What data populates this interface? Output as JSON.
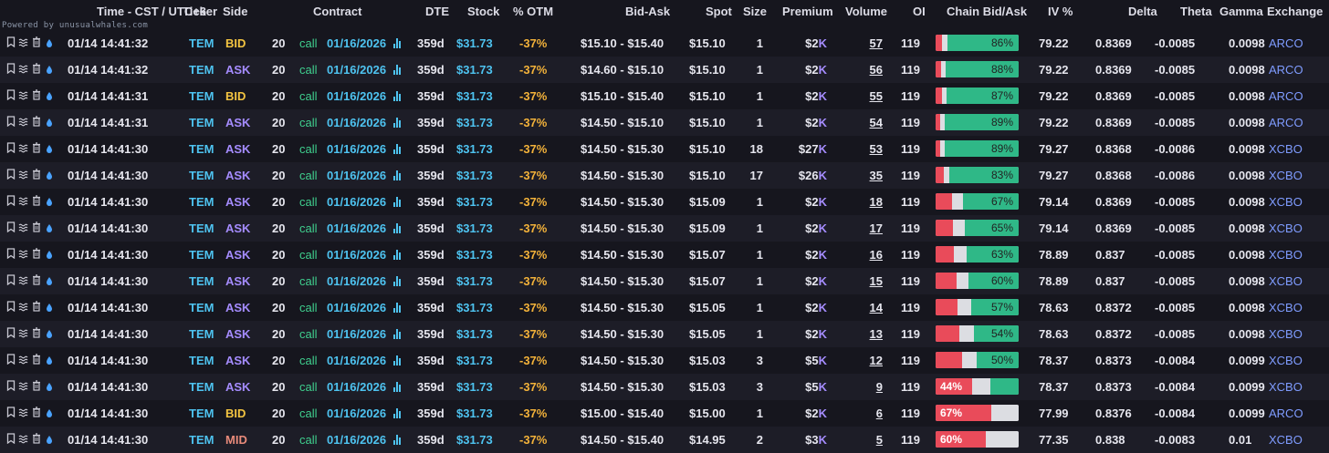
{
  "header": {
    "time": "Time - CST / UTC+6",
    "ticker": "Ticker",
    "side": "Side",
    "contract": "Contract",
    "dte": "DTE",
    "stock": "Stock",
    "otm": "% OTM",
    "bidask": "Bid-Ask",
    "spot": "Spot",
    "size": "Size",
    "premium": "Premium",
    "volume": "Volume",
    "oi": "OI",
    "chain": "Chain Bid/Ask",
    "iv": "IV %",
    "delta": "Delta",
    "theta": "Theta",
    "gamma": "Gamma",
    "exchange": "Exchange"
  },
  "powered_by": "Powered by unusualwhales.com",
  "icon_names": [
    "bookmark-icon",
    "waves-icon",
    "trash-icon",
    "drop-icon"
  ],
  "colors": {
    "ask": "#a58cff",
    "bid": "#f3c441",
    "mid": "#e88a7a",
    "bar_red": "#e94b5a",
    "bar_green": "#2fb887"
  },
  "rows": [
    {
      "time": "01/14 14:41:32",
      "ticker": "TEM",
      "side": "BID",
      "strike": "20",
      "type": "call",
      "exp": "01/16/2026",
      "dte": "359d",
      "stock": "$31.73",
      "otm": "-37%",
      "bidask": "$15.10 - $15.40",
      "spot": "$15.10",
      "size": "1",
      "premium": "$2",
      "prem_unit": "K",
      "volume": "57",
      "oi": "119",
      "chain_label": "86%",
      "chain_red": 0.08,
      "chain_grey": 0.06,
      "chain_green": 0.86,
      "iv": "79.22",
      "delta": "0.8369",
      "theta": "-0.0085",
      "gamma": "0.0098",
      "exchange": "ARCO"
    },
    {
      "time": "01/14 14:41:32",
      "ticker": "TEM",
      "side": "ASK",
      "strike": "20",
      "type": "call",
      "exp": "01/16/2026",
      "dte": "359d",
      "stock": "$31.73",
      "otm": "-37%",
      "bidask": "$14.60 - $15.10",
      "spot": "$15.10",
      "size": "1",
      "premium": "$2",
      "prem_unit": "K",
      "volume": "56",
      "oi": "119",
      "chain_label": "88%",
      "chain_red": 0.07,
      "chain_grey": 0.05,
      "chain_green": 0.88,
      "iv": "79.22",
      "delta": "0.8369",
      "theta": "-0.0085",
      "gamma": "0.0098",
      "exchange": "ARCO"
    },
    {
      "time": "01/14 14:41:31",
      "ticker": "TEM",
      "side": "BID",
      "strike": "20",
      "type": "call",
      "exp": "01/16/2026",
      "dte": "359d",
      "stock": "$31.73",
      "otm": "-37%",
      "bidask": "$15.10 - $15.40",
      "spot": "$15.10",
      "size": "1",
      "premium": "$2",
      "prem_unit": "K",
      "volume": "55",
      "oi": "119",
      "chain_label": "87%",
      "chain_red": 0.08,
      "chain_grey": 0.05,
      "chain_green": 0.87,
      "iv": "79.22",
      "delta": "0.8369",
      "theta": "-0.0085",
      "gamma": "0.0098",
      "exchange": "ARCO"
    },
    {
      "time": "01/14 14:41:31",
      "ticker": "TEM",
      "side": "ASK",
      "strike": "20",
      "type": "call",
      "exp": "01/16/2026",
      "dte": "359d",
      "stock": "$31.73",
      "otm": "-37%",
      "bidask": "$14.50 - $15.10",
      "spot": "$15.10",
      "size": "1",
      "premium": "$2",
      "prem_unit": "K",
      "volume": "54",
      "oi": "119",
      "chain_label": "89%",
      "chain_red": 0.06,
      "chain_grey": 0.05,
      "chain_green": 0.89,
      "iv": "79.22",
      "delta": "0.8369",
      "theta": "-0.0085",
      "gamma": "0.0098",
      "exchange": "ARCO"
    },
    {
      "time": "01/14 14:41:30",
      "ticker": "TEM",
      "side": "ASK",
      "strike": "20",
      "type": "call",
      "exp": "01/16/2026",
      "dte": "359d",
      "stock": "$31.73",
      "otm": "-37%",
      "bidask": "$14.50 - $15.30",
      "spot": "$15.10",
      "size": "18",
      "premium": "$27",
      "prem_unit": "K",
      "volume": "53",
      "oi": "119",
      "chain_label": "89%",
      "chain_red": 0.06,
      "chain_grey": 0.05,
      "chain_green": 0.89,
      "iv": "79.27",
      "delta": "0.8368",
      "theta": "-0.0086",
      "gamma": "0.0098",
      "exchange": "XCBO"
    },
    {
      "time": "01/14 14:41:30",
      "ticker": "TEM",
      "side": "ASK",
      "strike": "20",
      "type": "call",
      "exp": "01/16/2026",
      "dte": "359d",
      "stock": "$31.73",
      "otm": "-37%",
      "bidask": "$14.50 - $15.30",
      "spot": "$15.10",
      "size": "17",
      "premium": "$26",
      "prem_unit": "K",
      "volume": "35",
      "oi": "119",
      "chain_label": "83%",
      "chain_red": 0.1,
      "chain_grey": 0.07,
      "chain_green": 0.83,
      "iv": "79.27",
      "delta": "0.8368",
      "theta": "-0.0086",
      "gamma": "0.0098",
      "exchange": "XCBO"
    },
    {
      "time": "01/14 14:41:30",
      "ticker": "TEM",
      "side": "ASK",
      "strike": "20",
      "type": "call",
      "exp": "01/16/2026",
      "dte": "359d",
      "stock": "$31.73",
      "otm": "-37%",
      "bidask": "$14.50 - $15.30",
      "spot": "$15.09",
      "size": "1",
      "premium": "$2",
      "prem_unit": "K",
      "volume": "18",
      "oi": "119",
      "chain_label": "67%",
      "chain_red": 0.2,
      "chain_grey": 0.13,
      "chain_green": 0.67,
      "iv": "79.14",
      "delta": "0.8369",
      "theta": "-0.0085",
      "gamma": "0.0098",
      "exchange": "XCBO"
    },
    {
      "time": "01/14 14:41:30",
      "ticker": "TEM",
      "side": "ASK",
      "strike": "20",
      "type": "call",
      "exp": "01/16/2026",
      "dte": "359d",
      "stock": "$31.73",
      "otm": "-37%",
      "bidask": "$14.50 - $15.30",
      "spot": "$15.09",
      "size": "1",
      "premium": "$2",
      "prem_unit": "K",
      "volume": "17",
      "oi": "119",
      "chain_label": "65%",
      "chain_red": 0.21,
      "chain_grey": 0.14,
      "chain_green": 0.65,
      "iv": "79.14",
      "delta": "0.8369",
      "theta": "-0.0085",
      "gamma": "0.0098",
      "exchange": "XCBO"
    },
    {
      "time": "01/14 14:41:30",
      "ticker": "TEM",
      "side": "ASK",
      "strike": "20",
      "type": "call",
      "exp": "01/16/2026",
      "dte": "359d",
      "stock": "$31.73",
      "otm": "-37%",
      "bidask": "$14.50 - $15.30",
      "spot": "$15.07",
      "size": "1",
      "premium": "$2",
      "prem_unit": "K",
      "volume": "16",
      "oi": "119",
      "chain_label": "63%",
      "chain_red": 0.22,
      "chain_grey": 0.15,
      "chain_green": 0.63,
      "iv": "78.89",
      "delta": "0.837",
      "theta": "-0.0085",
      "gamma": "0.0098",
      "exchange": "XCBO"
    },
    {
      "time": "01/14 14:41:30",
      "ticker": "TEM",
      "side": "ASK",
      "strike": "20",
      "type": "call",
      "exp": "01/16/2026",
      "dte": "359d",
      "stock": "$31.73",
      "otm": "-37%",
      "bidask": "$14.50 - $15.30",
      "spot": "$15.07",
      "size": "1",
      "premium": "$2",
      "prem_unit": "K",
      "volume": "15",
      "oi": "119",
      "chain_label": "60%",
      "chain_red": 0.25,
      "chain_grey": 0.15,
      "chain_green": 0.6,
      "iv": "78.89",
      "delta": "0.837",
      "theta": "-0.0085",
      "gamma": "0.0098",
      "exchange": "XCBO"
    },
    {
      "time": "01/14 14:41:30",
      "ticker": "TEM",
      "side": "ASK",
      "strike": "20",
      "type": "call",
      "exp": "01/16/2026",
      "dte": "359d",
      "stock": "$31.73",
      "otm": "-37%",
      "bidask": "$14.50 - $15.30",
      "spot": "$15.05",
      "size": "1",
      "premium": "$2",
      "prem_unit": "K",
      "volume": "14",
      "oi": "119",
      "chain_label": "57%",
      "chain_red": 0.26,
      "chain_grey": 0.17,
      "chain_green": 0.57,
      "iv": "78.63",
      "delta": "0.8372",
      "theta": "-0.0085",
      "gamma": "0.0098",
      "exchange": "XCBO"
    },
    {
      "time": "01/14 14:41:30",
      "ticker": "TEM",
      "side": "ASK",
      "strike": "20",
      "type": "call",
      "exp": "01/16/2026",
      "dte": "359d",
      "stock": "$31.73",
      "otm": "-37%",
      "bidask": "$14.50 - $15.30",
      "spot": "$15.05",
      "size": "1",
      "premium": "$2",
      "prem_unit": "K",
      "volume": "13",
      "oi": "119",
      "chain_label": "54%",
      "chain_red": 0.29,
      "chain_grey": 0.17,
      "chain_green": 0.54,
      "iv": "78.63",
      "delta": "0.8372",
      "theta": "-0.0085",
      "gamma": "0.0098",
      "exchange": "XCBO"
    },
    {
      "time": "01/14 14:41:30",
      "ticker": "TEM",
      "side": "ASK",
      "strike": "20",
      "type": "call",
      "exp": "01/16/2026",
      "dte": "359d",
      "stock": "$31.73",
      "otm": "-37%",
      "bidask": "$14.50 - $15.30",
      "spot": "$15.03",
      "size": "3",
      "premium": "$5",
      "prem_unit": "K",
      "volume": "12",
      "oi": "119",
      "chain_label": "50%",
      "chain_red": 0.32,
      "chain_grey": 0.18,
      "chain_green": 0.5,
      "iv": "78.37",
      "delta": "0.8373",
      "theta": "-0.0084",
      "gamma": "0.0099",
      "exchange": "XCBO"
    },
    {
      "time": "01/14 14:41:30",
      "ticker": "TEM",
      "side": "ASK",
      "strike": "20",
      "type": "call",
      "exp": "01/16/2026",
      "dte": "359d",
      "stock": "$31.73",
      "otm": "-37%",
      "bidask": "$14.50 - $15.30",
      "spot": "$15.03",
      "size": "3",
      "premium": "$5",
      "prem_unit": "K",
      "volume": "9",
      "oi": "119",
      "chain_label": "44%",
      "chain_red": 0.44,
      "chain_grey": 0.22,
      "chain_green": 0.34,
      "iv": "78.37",
      "delta": "0.8373",
      "theta": "-0.0084",
      "gamma": "0.0099",
      "exchange": "XCBO"
    },
    {
      "time": "01/14 14:41:30",
      "ticker": "TEM",
      "side": "BID",
      "strike": "20",
      "type": "call",
      "exp": "01/16/2026",
      "dte": "359d",
      "stock": "$31.73",
      "otm": "-37%",
      "bidask": "$15.00 - $15.40",
      "spot": "$15.00",
      "size": "1",
      "premium": "$2",
      "prem_unit": "K",
      "volume": "6",
      "oi": "119",
      "chain_label": "67%",
      "chain_red": 0.67,
      "chain_grey": 0.33,
      "chain_green": 0,
      "iv": "77.99",
      "delta": "0.8376",
      "theta": "-0.0084",
      "gamma": "0.0099",
      "exchange": "ARCO"
    },
    {
      "time": "01/14 14:41:30",
      "ticker": "TEM",
      "side": "MID",
      "strike": "20",
      "type": "call",
      "exp": "01/16/2026",
      "dte": "359d",
      "stock": "$31.73",
      "otm": "-37%",
      "bidask": "$14.50 - $15.40",
      "spot": "$14.95",
      "size": "2",
      "premium": "$3",
      "prem_unit": "K",
      "volume": "5",
      "oi": "119",
      "chain_label": "60%",
      "chain_red": 0.6,
      "chain_grey": 0.4,
      "chain_green": 0,
      "iv": "77.35",
      "delta": "0.838",
      "theta": "-0.0083",
      "gamma": "0.01",
      "exchange": "XCBO"
    }
  ]
}
